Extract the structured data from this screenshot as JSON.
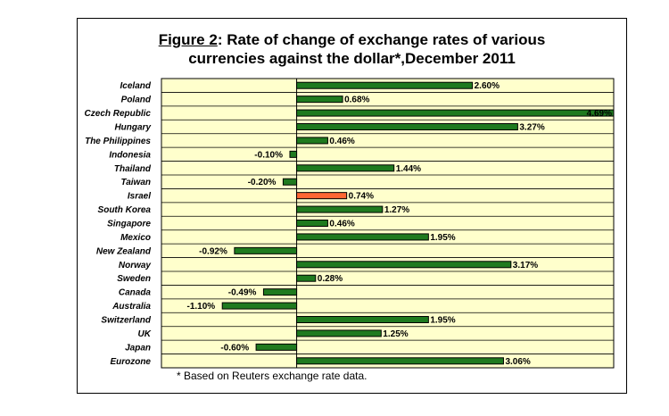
{
  "chart_data": {
    "type": "bar",
    "orientation": "horizontal",
    "title_prefix": "Figure 2",
    "title_line1": ": Rate of change of exchange rates of various",
    "title_line2": "currencies against the dollar*,December 2011",
    "footnote": "* Based on Reuters exchange rate data.",
    "xlim": [
      -2.0,
      4.69
    ],
    "grid": true,
    "legend": "none",
    "categories": [
      "Iceland",
      "Poland",
      "Czech Republic",
      "Hungary",
      "The Philippines",
      "Indonesia",
      "Thailand",
      "Taiwan",
      "Israel",
      "South Korea",
      "Singapore",
      "Mexico",
      "New Zealand",
      "Norway",
      "Sweden",
      "Canada",
      "Australia",
      "Switzerland",
      "UK",
      "Japan",
      "Eurozone"
    ],
    "values": [
      2.6,
      0.68,
      4.69,
      3.27,
      0.46,
      -0.1,
      1.44,
      -0.2,
      0.74,
      1.27,
      0.46,
      1.95,
      -0.92,
      3.17,
      0.28,
      -0.49,
      -1.1,
      1.95,
      1.25,
      -0.6,
      3.06
    ],
    "labels": [
      "2.60%",
      "0.68%",
      "4.69%",
      "3.27%",
      "0.46%",
      "-0.10%",
      "1.44%",
      "-0.20%",
      "0.74%",
      "1.27%",
      "0.46%",
      "1.95%",
      "-0.92%",
      "3.17%",
      "0.28%",
      "-0.49%",
      "-1.10%",
      "1.95%",
      "1.25%",
      "-0.60%",
      "3.06%"
    ],
    "colors": {
      "default": "#1f7a1f",
      "highlight": "#ff6633",
      "plot_bg": "#ffffcc"
    },
    "highlight_category": "Israel"
  }
}
